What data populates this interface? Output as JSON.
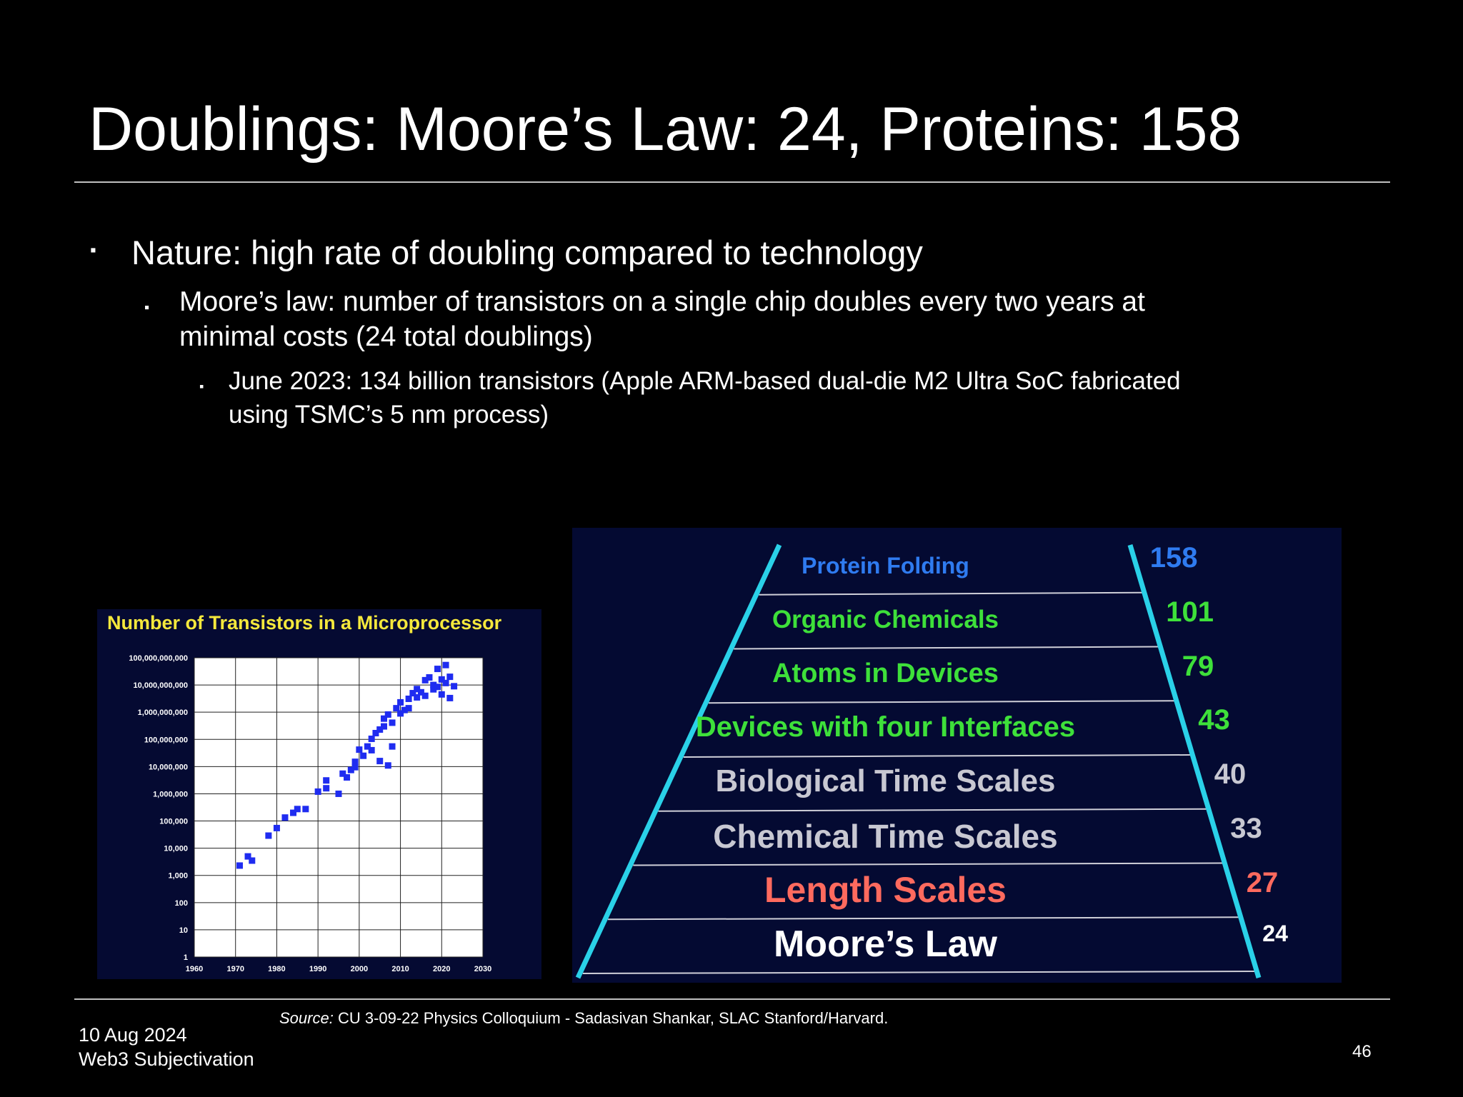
{
  "slide": {
    "title": "Doublings: Moore’s Law: 24, Proteins: 158",
    "bullets": {
      "level1": "Nature: high rate of doubling compared to technology",
      "level2_line1": "Moore’s law: number of transistors on a single chip doubles every two years at",
      "level2_line2": "minimal costs (24 total doublings)",
      "level3_line1": "June 2023: 134 billion transistors (Apple ARM-based dual-die M2 Ultra SoC fabricated",
      "level3_line2": "using TSMC’s 5 nm process)",
      "marker": "▪"
    },
    "source_label": "Source:",
    "source_text": " CU 3-09-22 Physics Colloquium - Sadasivan Shankar, SLAC Stanford/Harvard.",
    "footer_date": "10 Aug 2024",
    "footer_title": "Web3 Subjectivation",
    "page_number": "46"
  },
  "chart_data": {
    "type": "scatter",
    "title": "Number of Transistors in a Microprocessor",
    "scale": "log",
    "y_tick_labels": [
      "1",
      "10",
      "100",
      "1,000",
      "10,000",
      "100,000",
      "1,000,000",
      "10,000,000",
      "100,000,000",
      "1,000,000,000",
      "10,000,000,000",
      "100,000,000,000"
    ],
    "x_tick_labels": [
      "1960",
      "1970",
      "1980",
      "1990",
      "2000",
      "2010",
      "2020",
      "2030"
    ],
    "xlim": [
      1960,
      2030
    ],
    "ylim": [
      1,
      100000000000
    ],
    "grid": true,
    "marker_color": "#1f2cf0",
    "points": [
      [
        1971,
        2300
      ],
      [
        1973,
        5000
      ],
      [
        1974,
        3500
      ],
      [
        1978,
        29000
      ],
      [
        1980,
        55000
      ],
      [
        1982,
        134000
      ],
      [
        1984,
        200000
      ],
      [
        1985,
        275000
      ],
      [
        1987,
        275000
      ],
      [
        1990,
        1200000
      ],
      [
        1992,
        3100000
      ],
      [
        1992,
        1600000
      ],
      [
        1995,
        1000000
      ],
      [
        1996,
        5500000
      ],
      [
        1997,
        4000000
      ],
      [
        1998,
        7500000
      ],
      [
        1999,
        9500000
      ],
      [
        1999,
        15000000
      ],
      [
        2000,
        42000000
      ],
      [
        2001,
        25000000
      ],
      [
        2002,
        55000000
      ],
      [
        2003,
        105000000
      ],
      [
        2003,
        40000000
      ],
      [
        2004,
        170000000
      ],
      [
        2005,
        230000000
      ],
      [
        2005,
        16000000
      ],
      [
        2006,
        300000000
      ],
      [
        2006,
        580000000
      ],
      [
        2007,
        820000000
      ],
      [
        2007,
        11000000
      ],
      [
        2008,
        410000000
      ],
      [
        2008,
        55000000
      ],
      [
        2009,
        1400000000
      ],
      [
        2010,
        900000000
      ],
      [
        2010,
        2300000000
      ],
      [
        2011,
        1200000000
      ],
      [
        2012,
        1400000000
      ],
      [
        2012,
        3100000000
      ],
      [
        2013,
        5000000000
      ],
      [
        2014,
        7100000000
      ],
      [
        2014,
        3500000000
      ],
      [
        2015,
        5400000000
      ],
      [
        2016,
        15000000000
      ],
      [
        2016,
        4000000000
      ],
      [
        2017,
        19000000000
      ],
      [
        2018,
        10000000000
      ],
      [
        2018,
        6900000000
      ],
      [
        2019,
        39000000000
      ],
      [
        2019,
        8500000000
      ],
      [
        2020,
        16000000000
      ],
      [
        2020,
        4500000000
      ],
      [
        2021,
        54000000000
      ],
      [
        2021,
        11800000000
      ],
      [
        2022,
        20000000000
      ],
      [
        2022,
        3300000000
      ],
      [
        2023,
        9000000000
      ]
    ]
  },
  "pyramid": {
    "tiers": [
      {
        "label": "Protein Folding",
        "value": "158",
        "color": "#2f7bf0",
        "size": 32
      },
      {
        "label": "Organic Chemicals",
        "value": "101",
        "color": "#3ee03a",
        "size": 35
      },
      {
        "label": "Atoms in Devices",
        "value": "79",
        "color": "#3ee03a",
        "size": 38
      },
      {
        "label": "Devices with four Interfaces",
        "value": "43",
        "color": "#3ee03a",
        "size": 40
      },
      {
        "label": "Biological Time Scales",
        "value": "40",
        "color": "#c8c8d2",
        "size": 44
      },
      {
        "label": "Chemical Time Scales",
        "value": "33",
        "color": "#c8c8d2",
        "size": 46
      },
      {
        "label": "Length Scales",
        "value": "27",
        "color": "#ff6a5e",
        "size": 50
      },
      {
        "label": "Moore’s Law",
        "value": "24",
        "color": "#ffffff",
        "size": 52
      }
    ],
    "edge_color": "#2ad1e8"
  }
}
